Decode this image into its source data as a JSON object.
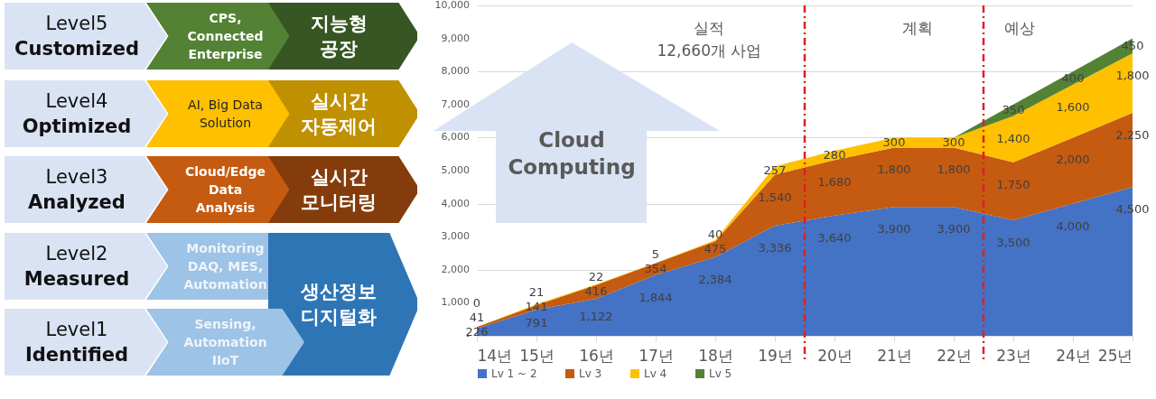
{
  "chart_data": [
    {
      "type": "other",
      "annotations": [
        "Level5\nCustomized",
        "CPS,\nConnected\nEnterprise",
        "지능형\n공장",
        "Level4\nOptimized",
        "AI, Big Data\nSolution",
        "실시간\n자동제어",
        "Level3\nAnalyzed",
        "Cloud/Edge\nData\nAnalysis",
        "실시간\n모니터링",
        "Level2\nMeasured",
        "Monitoring\nDAQ, MES,\nAutomation",
        "생산정보\n디지털화",
        "Level1\nIdentified",
        "Sensing,\nAutomation\nIIoT"
      ]
    },
    {
      "type": "area",
      "stacked": true,
      "x": [
        14,
        15,
        16,
        17,
        18,
        19,
        20,
        21,
        22,
        23,
        24,
        25
      ],
      "series": [
        {
          "name": "Lv 1 ~ 2",
          "color": "#4472c4",
          "values": [
            226,
            791,
            1122,
            1844,
            2384,
            3336,
            3640,
            3900,
            3900,
            3500,
            4000,
            4500
          ],
          "value_labels": [
            "226",
            "791",
            "1,122",
            "1,844",
            "2,384",
            "3,336",
            "3,640",
            "3,900",
            "3,900",
            "3,500",
            "4,000",
            "4,500"
          ]
        },
        {
          "name": "Lv 3",
          "color": "#c55a11",
          "values": [
            41,
            141,
            416,
            354,
            475,
            1540,
            1680,
            1800,
            1800,
            1750,
            2000,
            2250
          ],
          "value_labels": [
            "41",
            "141",
            "416",
            "354",
            "475",
            "1,540",
            "1,680",
            "1,800",
            "1,800",
            "1,750",
            "2,000",
            "2,250"
          ]
        },
        {
          "name": "Lv 4",
          "color": "#ffc000",
          "values": [
            0,
            21,
            22,
            5,
            40,
            257,
            280,
            300,
            300,
            1400,
            1600,
            1800
          ],
          "value_labels": [
            "0",
            "21",
            "22",
            "5",
            "40",
            "257",
            "280",
            "300",
            "300",
            "1,400",
            "1,600",
            "1,800"
          ]
        },
        {
          "name": "Lv 5",
          "color": "#548235",
          "values": [
            null,
            null,
            null,
            null,
            null,
            null,
            null,
            null,
            0,
            350,
            400,
            450
          ],
          "value_labels": [
            null,
            null,
            null,
            null,
            null,
            null,
            null,
            null,
            null,
            "350",
            "400",
            "450"
          ]
        }
      ],
      "xlim": [
        14,
        25
      ],
      "xticks": [
        {
          "value": 14,
          "label": "14년"
        },
        {
          "value": 15,
          "label": "15년"
        },
        {
          "value": 16,
          "label": "16년"
        },
        {
          "value": 17,
          "label": "17년"
        },
        {
          "value": 18,
          "label": "18년"
        },
        {
          "value": 19,
          "label": "19년"
        },
        {
          "value": 20,
          "label": "20년"
        },
        {
          "value": 21,
          "label": "21년"
        },
        {
          "value": 22,
          "label": "22년"
        },
        {
          "value": 23,
          "label": "23년"
        },
        {
          "value": 24,
          "label": "24년"
        },
        {
          "value": 25,
          "label": "25년"
        }
      ],
      "ylim": [
        0,
        10000
      ],
      "yticks": [
        {
          "value": 0,
          "label": "-"
        },
        {
          "value": 1000,
          "label": "1,000"
        },
        {
          "value": 2000,
          "label": "2,000"
        },
        {
          "value": 3000,
          "label": "3,000"
        },
        {
          "value": 4000,
          "label": "4,000"
        },
        {
          "value": 5000,
          "label": "5,000"
        },
        {
          "value": 6000,
          "label": "6,000"
        },
        {
          "value": 7000,
          "label": "7,000"
        },
        {
          "value": 8000,
          "label": "8,000"
        },
        {
          "value": 9000,
          "label": "9,000"
        },
        {
          "value": 10000,
          "label": "10,000"
        }
      ],
      "grid": "y",
      "legend": "bottom",
      "ref_lines": [
        {
          "axis": "x",
          "value": 19.5,
          "color": "#e02020",
          "line_style": "dashed"
        },
        {
          "axis": "x",
          "value": 22.5,
          "color": "#e02020",
          "line_style": "dashed"
        }
      ],
      "annotations": [
        "Cloud Computing",
        "실적",
        "12,660개 사업",
        "계획",
        "예상"
      ]
    }
  ]
}
